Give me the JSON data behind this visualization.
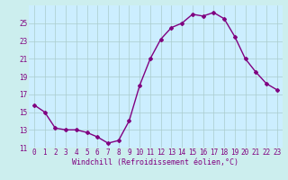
{
  "x": [
    0,
    1,
    2,
    3,
    4,
    5,
    6,
    7,
    8,
    9,
    10,
    11,
    12,
    13,
    14,
    15,
    16,
    17,
    18,
    19,
    20,
    21,
    22,
    23
  ],
  "y": [
    15.8,
    15.0,
    13.2,
    13.0,
    13.0,
    12.7,
    12.2,
    11.5,
    11.8,
    14.0,
    18.0,
    21.0,
    23.2,
    24.5,
    25.0,
    26.0,
    25.8,
    26.2,
    25.5,
    23.5,
    21.0,
    19.5,
    18.2,
    17.5
  ],
  "line_color": "#800080",
  "marker": "D",
  "markersize": 2.0,
  "linewidth": 1.0,
  "bg_color": "#cceeee",
  "plot_bg_color": "#cceeff",
  "grid_color": "#aacccc",
  "xlabel": "Windchill (Refroidissement éolien,°C)",
  "xlabel_color": "#800080",
  "xlabel_fontsize": 6.0,
  "tick_color": "#800080",
  "tick_fontsize": 5.5,
  "ylim": [
    11,
    27
  ],
  "yticks": [
    11,
    13,
    15,
    17,
    19,
    21,
    23,
    25
  ],
  "xticks": [
    0,
    1,
    2,
    3,
    4,
    5,
    6,
    7,
    8,
    9,
    10,
    11,
    12,
    13,
    14,
    15,
    16,
    17,
    18,
    19,
    20,
    21,
    22,
    23
  ]
}
